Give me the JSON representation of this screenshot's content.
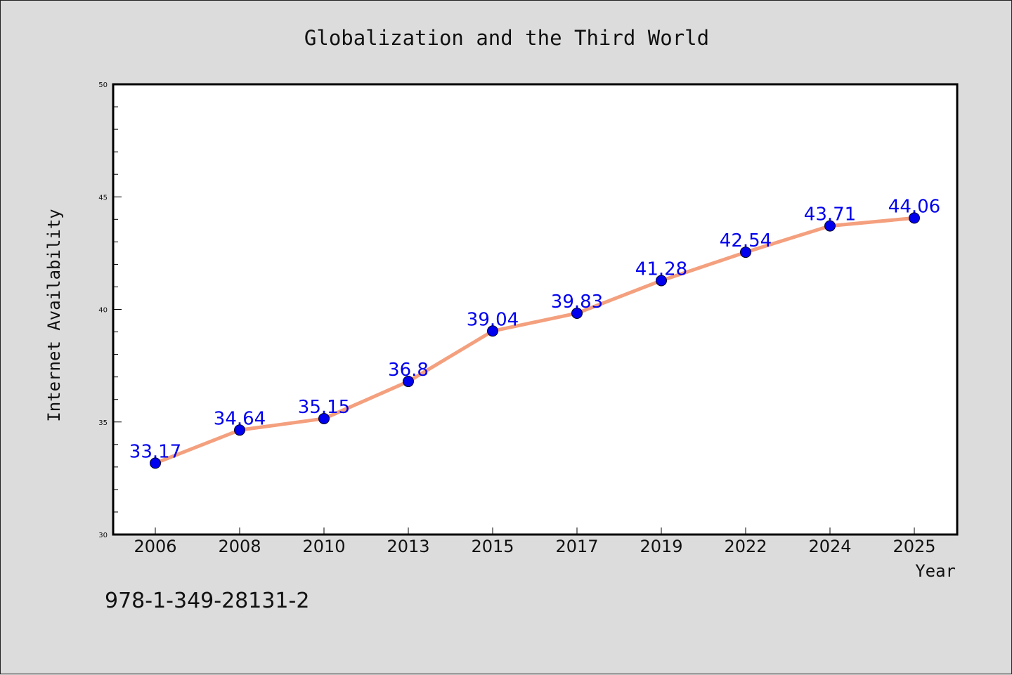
{
  "chart_data": {
    "type": "line",
    "title": "Globalization and the Third World",
    "xlabel": "Year",
    "ylabel": "Internet Availability",
    "categories": [
      "2006",
      "2008",
      "2010",
      "2013",
      "2015",
      "2017",
      "2019",
      "2022",
      "2024",
      "2025"
    ],
    "series": [
      {
        "values": [
          33.17,
          34.64,
          35.15,
          36.8,
          39.04,
          39.83,
          41.28,
          42.54,
          43.71,
          44.06
        ]
      }
    ],
    "data_labels": [
      "33.17",
      "34.64",
      "35.15",
      "36.8",
      "39.04",
      "39.83",
      "41.28",
      "42.54",
      "43.71",
      "44.06"
    ],
    "ylim": [
      30,
      50
    ],
    "yticks": [
      "30",
      "35",
      "40",
      "45",
      "50"
    ],
    "ytick_values": [
      30,
      35,
      40,
      45,
      50
    ],
    "grid": false,
    "legend": "none",
    "colors": {
      "line": "#f4a07e",
      "marker": "#0000ee",
      "label": "#0000ee",
      "background": "#dcdcdc",
      "plot_background": "#ffffff"
    }
  },
  "footer": {
    "id_text": "978-1-349-28131-2"
  }
}
